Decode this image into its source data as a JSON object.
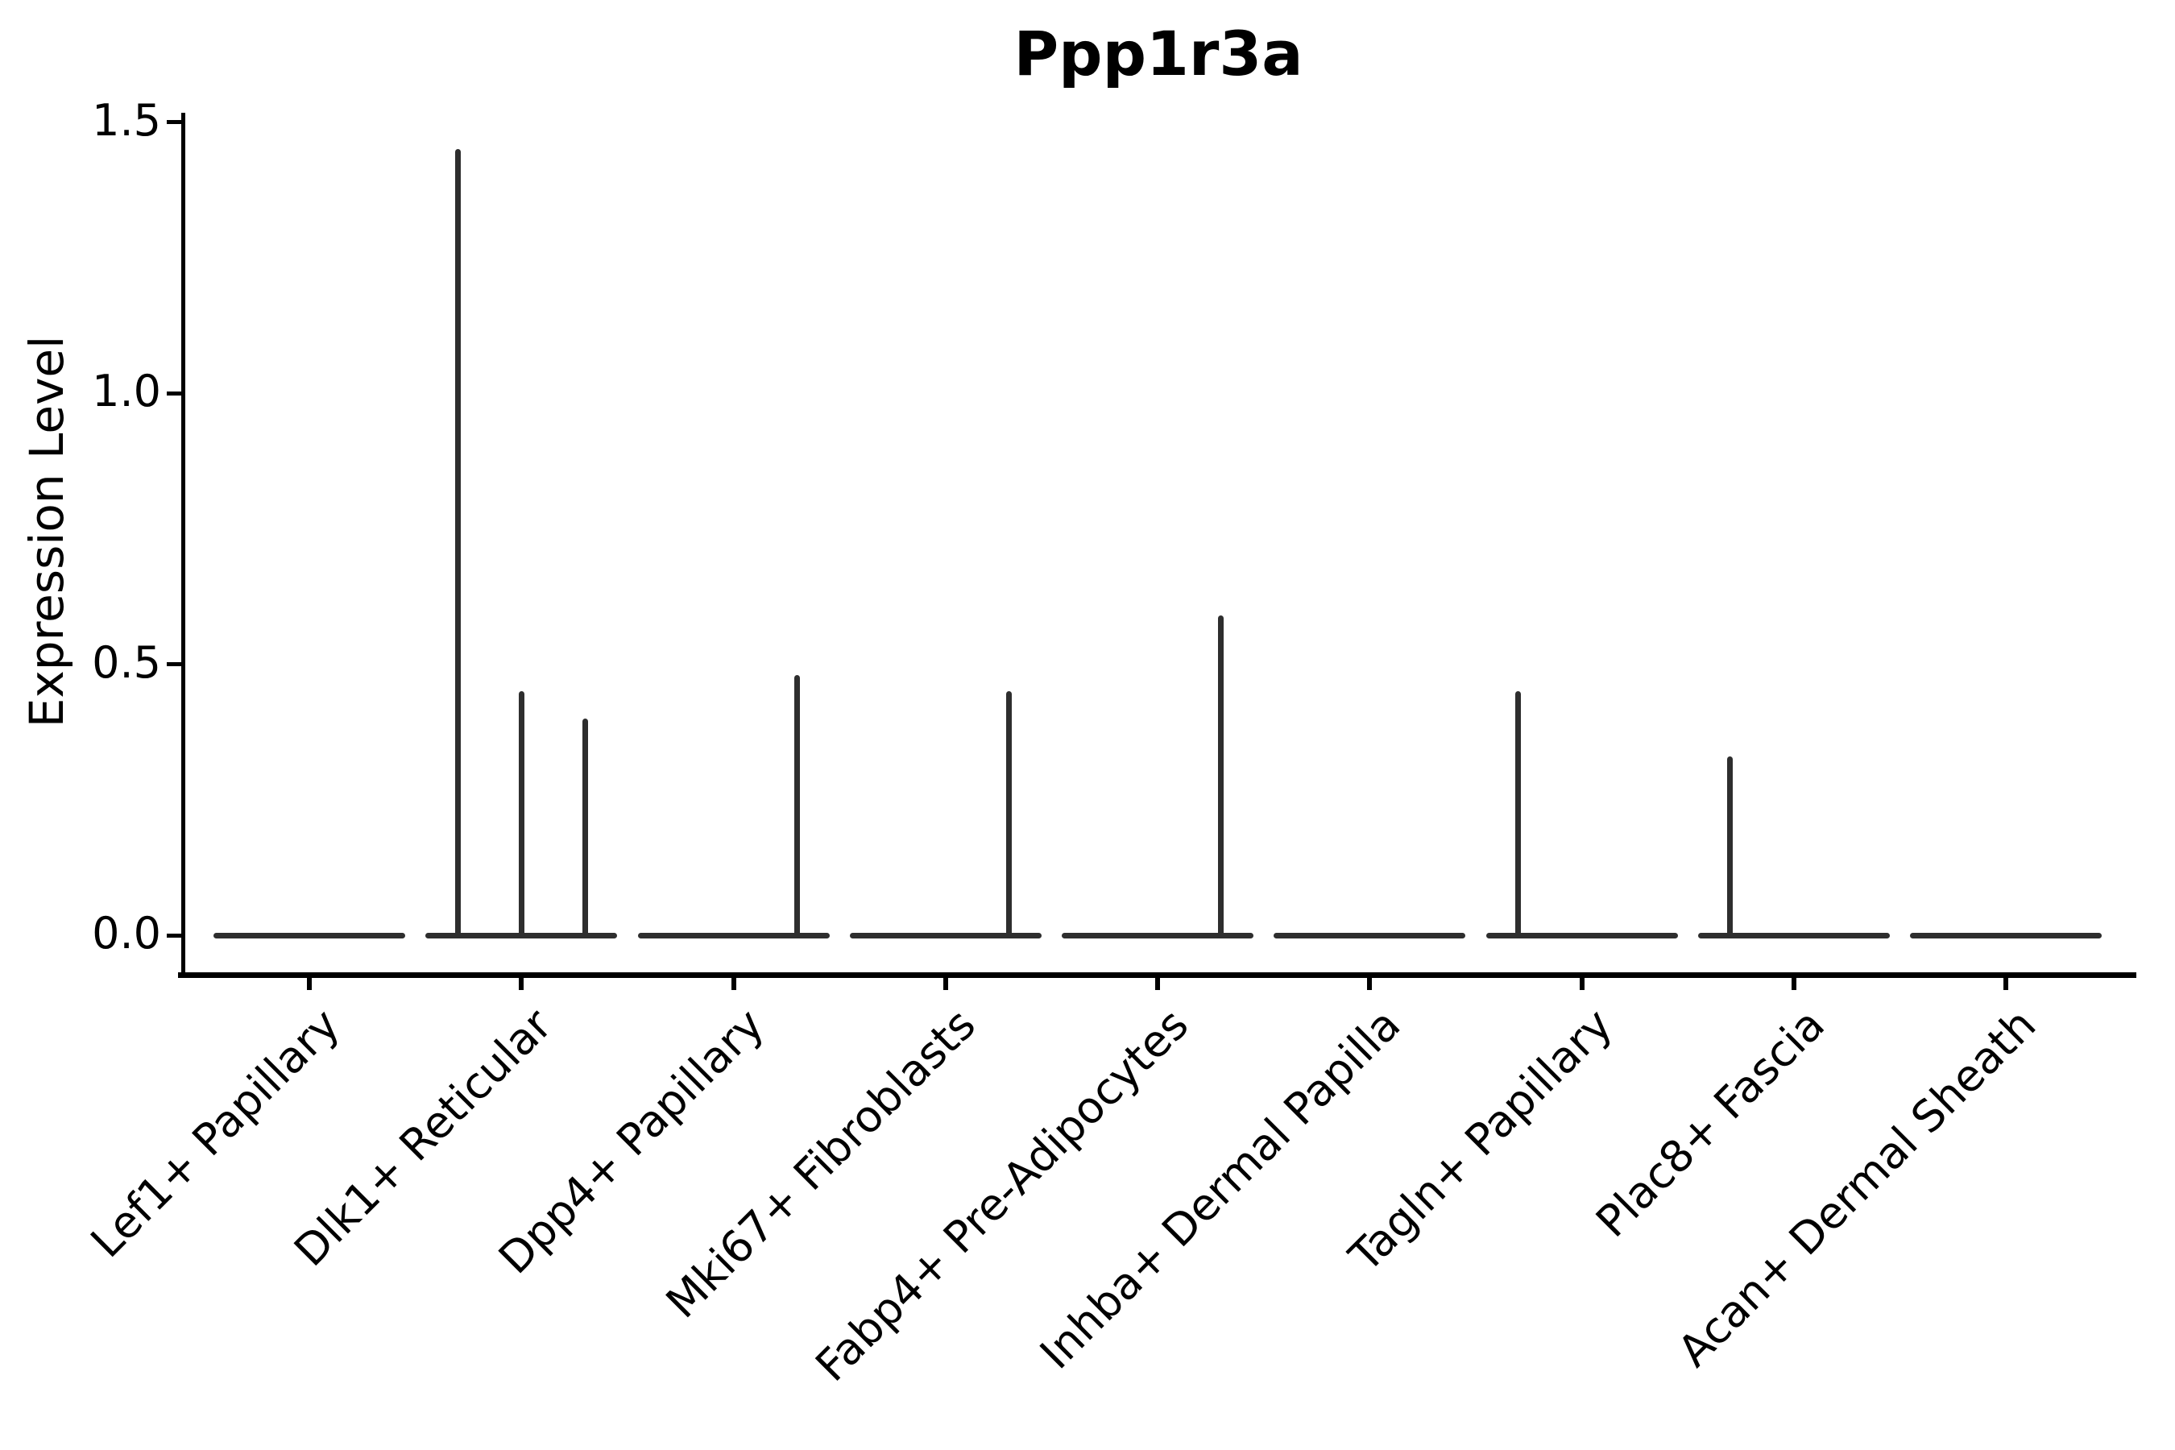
{
  "chart_data": {
    "type": "violin",
    "title": "Ppp1r3a",
    "xlabel": "",
    "ylabel": "Expression Level",
    "ylim": [
      0.0,
      1.5
    ],
    "yticks": [
      0.0,
      0.5,
      1.0,
      1.5
    ],
    "ytick_labels": [
      "0.0",
      "0.5",
      "1.0",
      "1.5"
    ],
    "grid": false,
    "legend": "none",
    "categories": [
      "Lef1+ Papillary",
      "Dlk1+ Reticular",
      "Dpp4+ Papillary",
      "Mki67+ Fibroblasts",
      "Fabp4+ Pre-Adipocytes",
      "Inhba+ Dermal Papilla",
      "Tagln+ Papillary",
      "Plac8+ Fascia",
      "Acan+ Dermal Sheath"
    ],
    "series": [
      {
        "category": "Lef1+ Papillary",
        "baseline_value": 0.0,
        "spikes": []
      },
      {
        "category": "Dlk1+ Reticular",
        "baseline_value": 0.0,
        "spikes": [
          {
            "position": -0.3,
            "value": 1.45
          },
          {
            "position": 0.0,
            "value": 0.45
          },
          {
            "position": 0.3,
            "value": 0.4
          }
        ]
      },
      {
        "category": "Dpp4+ Papillary",
        "baseline_value": 0.0,
        "spikes": [
          {
            "position": 0.3,
            "value": 0.48
          }
        ]
      },
      {
        "category": "Mki67+ Fibroblasts",
        "baseline_value": 0.0,
        "spikes": [
          {
            "position": 0.3,
            "value": 0.45
          }
        ]
      },
      {
        "category": "Fabp4+ Pre-Adipocytes",
        "baseline_value": 0.0,
        "spikes": [
          {
            "position": 0.3,
            "value": 0.59
          }
        ]
      },
      {
        "category": "Inhba+ Dermal Papilla",
        "baseline_value": 0.0,
        "spikes": []
      },
      {
        "category": "Tagln+ Papillary",
        "baseline_value": 0.0,
        "spikes": [
          {
            "position": -0.3,
            "value": 0.45
          }
        ]
      },
      {
        "category": "Plac8+ Fascia",
        "baseline_value": 0.0,
        "spikes": [
          {
            "position": -0.3,
            "value": 0.33
          }
        ]
      },
      {
        "category": "Acan+ Dermal Sheath",
        "baseline_value": 0.0,
        "spikes": []
      }
    ],
    "colors": {
      "violin_stroke": "#2e2e2e",
      "axis": "#000000",
      "text": "#000000",
      "background": "#ffffff"
    }
  }
}
